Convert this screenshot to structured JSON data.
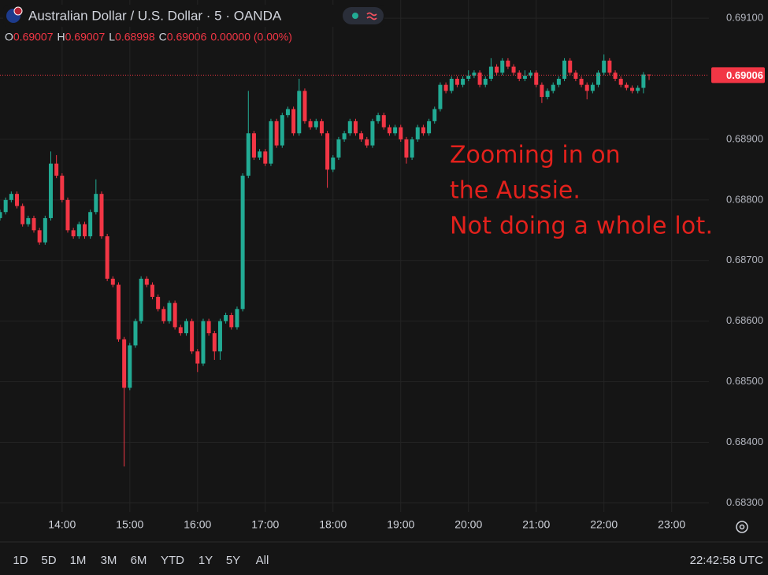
{
  "chart_data": {
    "type": "candlestick",
    "title": "Australian Dollar / U.S. Dollar · 5 · OANDA",
    "legend_values": [
      {
        "label": "O",
        "value": 0.69007
      },
      {
        "label": "H",
        "value": 0.69007
      },
      {
        "label": "L",
        "value": 0.68998
      },
      {
        "label": "C",
        "value": 0.69006
      }
    ],
    "change": "0.00000 (0.00%)",
    "annotation": [
      "Zooming in on",
      "the Aussie.",
      "Not doing a whole lot."
    ],
    "up_color": "#22ab94",
    "down_color": "#f23645",
    "grid": true,
    "last_price": 0.69006,
    "xlim": [
      785,
      1413
    ],
    "xticks": [
      {
        "value": 840,
        "label": "14:00"
      },
      {
        "value": 900,
        "label": "15:00"
      },
      {
        "value": 960,
        "label": "16:00"
      },
      {
        "value": 1020,
        "label": "17:00"
      },
      {
        "value": 1080,
        "label": "18:00"
      },
      {
        "value": 1140,
        "label": "19:00"
      },
      {
        "value": 1200,
        "label": "20:00"
      },
      {
        "value": 1260,
        "label": "21:00"
      },
      {
        "value": 1320,
        "label": "22:00"
      },
      {
        "value": 1380,
        "label": "23:00"
      }
    ],
    "ylim": [
      0.68285,
      0.6913
    ],
    "yticks": [
      {
        "value": 0.683,
        "label": "0.68300"
      },
      {
        "value": 0.684,
        "label": "0.68400"
      },
      {
        "value": 0.685,
        "label": "0.68500"
      },
      {
        "value": 0.686,
        "label": "0.68600"
      },
      {
        "value": 0.687,
        "label": "0.68700"
      },
      {
        "value": 0.688,
        "label": "0.68800"
      },
      {
        "value": 0.689,
        "label": "0.68900"
      },
      {
        "value": 0.691,
        "label": "0.69100"
      }
    ],
    "x": [
      785,
      790,
      795,
      800,
      805,
      810,
      815,
      820,
      825,
      830,
      835,
      840,
      845,
      850,
      855,
      860,
      865,
      870,
      875,
      880,
      885,
      890,
      895,
      900,
      905,
      910,
      915,
      920,
      925,
      930,
      935,
      940,
      945,
      950,
      955,
      960,
      965,
      970,
      975,
      980,
      985,
      990,
      995,
      1000,
      1005,
      1010,
      1015,
      1020,
      1025,
      1030,
      1035,
      1040,
      1045,
      1050,
      1055,
      1060,
      1065,
      1070,
      1075,
      1080,
      1085,
      1090,
      1095,
      1100,
      1105,
      1110,
      1115,
      1120,
      1125,
      1130,
      1135,
      1140,
      1145,
      1150,
      1155,
      1160,
      1165,
      1170,
      1175,
      1180,
      1185,
      1190,
      1195,
      1200,
      1205,
      1210,
      1215,
      1220,
      1225,
      1230,
      1235,
      1240,
      1245,
      1250,
      1255,
      1260,
      1265,
      1270,
      1275,
      1280,
      1285,
      1290,
      1295,
      1300,
      1305,
      1310,
      1315,
      1320,
      1325,
      1330,
      1335,
      1340,
      1345,
      1350,
      1355,
      1360
    ],
    "ohlc": [
      [
        0.6877,
        0.68784,
        0.68766,
        0.6878
      ],
      [
        0.6878,
        0.68804,
        0.68776,
        0.688
      ],
      [
        0.688,
        0.68814,
        0.68796,
        0.6881
      ],
      [
        0.6881,
        0.68814,
        0.68786,
        0.6879
      ],
      [
        0.6879,
        0.68794,
        0.68756,
        0.6876
      ],
      [
        0.6876,
        0.68774,
        0.68756,
        0.6877
      ],
      [
        0.6877,
        0.68774,
        0.68746,
        0.6875
      ],
      [
        0.6875,
        0.68754,
        0.68726,
        0.6873
      ],
      [
        0.6873,
        0.68774,
        0.68726,
        0.6877
      ],
      [
        0.6877,
        0.6888,
        0.68766,
        0.6886
      ],
      [
        0.6886,
        0.68874,
        0.68836,
        0.6884
      ],
      [
        0.6884,
        0.68844,
        0.68796,
        0.688
      ],
      [
        0.688,
        0.68804,
        0.68746,
        0.6875
      ],
      [
        0.6875,
        0.68754,
        0.68736,
        0.6874
      ],
      [
        0.6874,
        0.68764,
        0.68736,
        0.6876
      ],
      [
        0.6876,
        0.68764,
        0.68736,
        0.6874
      ],
      [
        0.6874,
        0.68784,
        0.68736,
        0.6878
      ],
      [
        0.6878,
        0.68834,
        0.68776,
        0.6881
      ],
      [
        0.6881,
        0.68814,
        0.68736,
        0.6874
      ],
      [
        0.6874,
        0.68744,
        0.68666,
        0.6867
      ],
      [
        0.6867,
        0.68674,
        0.68656,
        0.6866
      ],
      [
        0.6866,
        0.68664,
        0.68566,
        0.6857
      ],
      [
        0.6857,
        0.68574,
        0.6836,
        0.6849
      ],
      [
        0.6849,
        0.68564,
        0.68486,
        0.6856
      ],
      [
        0.6856,
        0.68604,
        0.68556,
        0.686
      ],
      [
        0.686,
        0.68674,
        0.68596,
        0.6867
      ],
      [
        0.6867,
        0.68674,
        0.68656,
        0.6866
      ],
      [
        0.6866,
        0.68664,
        0.68636,
        0.6864
      ],
      [
        0.6864,
        0.68644,
        0.68616,
        0.6862
      ],
      [
        0.6862,
        0.68624,
        0.68596,
        0.686
      ],
      [
        0.686,
        0.68634,
        0.68596,
        0.6863
      ],
      [
        0.6863,
        0.68634,
        0.68586,
        0.6859
      ],
      [
        0.6859,
        0.68594,
        0.68576,
        0.6858
      ],
      [
        0.6858,
        0.68604,
        0.68576,
        0.686
      ],
      [
        0.686,
        0.68604,
        0.68546,
        0.6855
      ],
      [
        0.6855,
        0.68554,
        0.68516,
        0.6853
      ],
      [
        0.6853,
        0.68604,
        0.68526,
        0.686
      ],
      [
        0.686,
        0.68604,
        0.68576,
        0.6858
      ],
      [
        0.6858,
        0.68584,
        0.68536,
        0.6855
      ],
      [
        0.6855,
        0.68604,
        0.68536,
        0.686
      ],
      [
        0.686,
        0.68614,
        0.68596,
        0.6861
      ],
      [
        0.6861,
        0.68614,
        0.68586,
        0.6859
      ],
      [
        0.6859,
        0.68624,
        0.68586,
        0.6862
      ],
      [
        0.6862,
        0.68844,
        0.68616,
        0.6884
      ],
      [
        0.6884,
        0.6898,
        0.68836,
        0.6891
      ],
      [
        0.6891,
        0.68914,
        0.68866,
        0.6887
      ],
      [
        0.6887,
        0.68884,
        0.68866,
        0.6888
      ],
      [
        0.6888,
        0.68884,
        0.68856,
        0.6886
      ],
      [
        0.6886,
        0.68934,
        0.68856,
        0.6893
      ],
      [
        0.6893,
        0.68934,
        0.68886,
        0.6889
      ],
      [
        0.6889,
        0.68944,
        0.68886,
        0.6894
      ],
      [
        0.6894,
        0.68954,
        0.68936,
        0.6895
      ],
      [
        0.6895,
        0.68954,
        0.68906,
        0.6891
      ],
      [
        0.6891,
        0.69,
        0.68906,
        0.6898
      ],
      [
        0.6898,
        0.68984,
        0.68926,
        0.6893
      ],
      [
        0.6893,
        0.68934,
        0.68916,
        0.6892
      ],
      [
        0.6892,
        0.68934,
        0.68916,
        0.6893
      ],
      [
        0.6893,
        0.68934,
        0.68906,
        0.6891
      ],
      [
        0.6891,
        0.68914,
        0.6882,
        0.6885
      ],
      [
        0.6885,
        0.68874,
        0.68846,
        0.6887
      ],
      [
        0.6887,
        0.68904,
        0.68866,
        0.689
      ],
      [
        0.689,
        0.68914,
        0.68896,
        0.6891
      ],
      [
        0.6891,
        0.68934,
        0.68906,
        0.6893
      ],
      [
        0.6893,
        0.68934,
        0.68906,
        0.6891
      ],
      [
        0.6891,
        0.68914,
        0.68896,
        0.689
      ],
      [
        0.689,
        0.68904,
        0.68886,
        0.6889
      ],
      [
        0.6889,
        0.68934,
        0.68886,
        0.6893
      ],
      [
        0.6893,
        0.68944,
        0.68926,
        0.6894
      ],
      [
        0.6894,
        0.68944,
        0.68916,
        0.6892
      ],
      [
        0.6892,
        0.68924,
        0.68906,
        0.6891
      ],
      [
        0.6891,
        0.68924,
        0.68906,
        0.6892
      ],
      [
        0.6892,
        0.68924,
        0.68896,
        0.689
      ],
      [
        0.689,
        0.68904,
        0.6886,
        0.6887
      ],
      [
        0.6887,
        0.68904,
        0.68866,
        0.689
      ],
      [
        0.689,
        0.68924,
        0.68896,
        0.6892
      ],
      [
        0.6892,
        0.68924,
        0.68906,
        0.6891
      ],
      [
        0.6891,
        0.68934,
        0.68906,
        0.6893
      ],
      [
        0.6893,
        0.68954,
        0.68926,
        0.6895
      ],
      [
        0.6895,
        0.68994,
        0.68946,
        0.6899
      ],
      [
        0.6899,
        0.68994,
        0.68976,
        0.6898
      ],
      [
        0.6898,
        0.69004,
        0.68976,
        0.69
      ],
      [
        0.69,
        0.69004,
        0.68986,
        0.6899
      ],
      [
        0.6899,
        0.69004,
        0.68986,
        0.69
      ],
      [
        0.69,
        0.69014,
        0.68996,
        0.69005
      ],
      [
        0.69005,
        0.69014,
        0.69001,
        0.6901
      ],
      [
        0.6901,
        0.69014,
        0.68986,
        0.6899
      ],
      [
        0.6899,
        0.69004,
        0.68986,
        0.69
      ],
      [
        0.69,
        0.69034,
        0.68996,
        0.6902
      ],
      [
        0.6902,
        0.69024,
        0.69006,
        0.6901
      ],
      [
        0.6901,
        0.69034,
        0.69006,
        0.6903
      ],
      [
        0.6903,
        0.69034,
        0.69016,
        0.6902
      ],
      [
        0.6902,
        0.69024,
        0.69006,
        0.6901
      ],
      [
        0.6901,
        0.69014,
        0.68996,
        0.69
      ],
      [
        0.69,
        0.69014,
        0.68996,
        0.69005
      ],
      [
        0.69005,
        0.69014,
        0.69001,
        0.6901
      ],
      [
        0.6901,
        0.69014,
        0.68986,
        0.6899
      ],
      [
        0.6899,
        0.68994,
        0.6896,
        0.6897
      ],
      [
        0.6897,
        0.68984,
        0.68966,
        0.6898
      ],
      [
        0.6898,
        0.68994,
        0.68976,
        0.6899
      ],
      [
        0.6899,
        0.69004,
        0.68986,
        0.69
      ],
      [
        0.69,
        0.69034,
        0.68996,
        0.6903
      ],
      [
        0.6903,
        0.69034,
        0.69006,
        0.6901
      ],
      [
        0.6901,
        0.69014,
        0.68996,
        0.69
      ],
      [
        0.69,
        0.69004,
        0.68986,
        0.6899
      ],
      [
        0.6899,
        0.68994,
        0.68966,
        0.6898
      ],
      [
        0.6898,
        0.68994,
        0.68976,
        0.6899
      ],
      [
        0.6899,
        0.69014,
        0.68986,
        0.6901
      ],
      [
        0.6901,
        0.6904,
        0.69006,
        0.6903
      ],
      [
        0.6903,
        0.69034,
        0.69006,
        0.6901
      ],
      [
        0.6901,
        0.69014,
        0.68996,
        0.69
      ],
      [
        0.69,
        0.69004,
        0.68986,
        0.6899
      ],
      [
        0.6899,
        0.68994,
        0.68981,
        0.68985
      ],
      [
        0.68985,
        0.68989,
        0.68976,
        0.6898
      ],
      [
        0.6898,
        0.68989,
        0.68976,
        0.68985
      ],
      [
        0.68985,
        0.69011,
        0.68976,
        0.69007
      ],
      [
        0.69007,
        0.69007,
        0.68998,
        0.69006
      ]
    ]
  },
  "toolbar": {
    "timeframes": [
      "1D",
      "5D",
      "1M",
      "3M",
      "6M",
      "YTD",
      "1Y",
      "5Y",
      "All"
    ],
    "clock": "22:42:58 UTC"
  }
}
